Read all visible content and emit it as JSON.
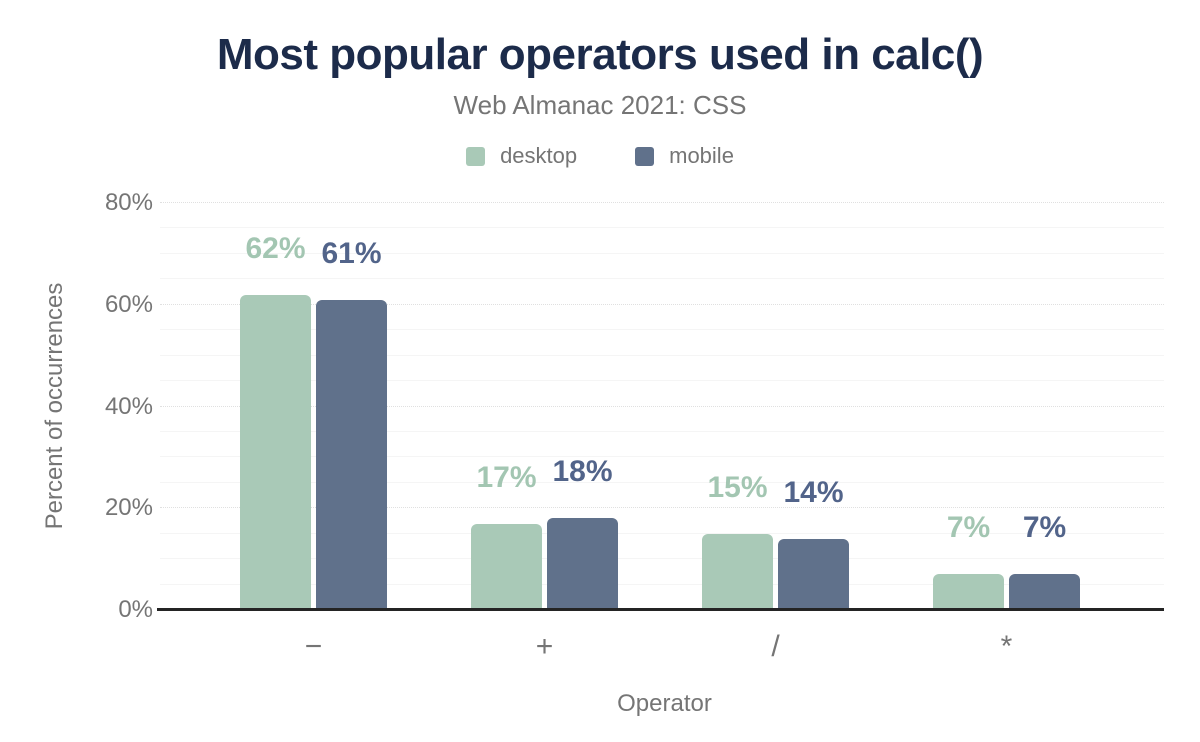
{
  "header": {
    "title": "Most popular operators used in calc()",
    "subtitle": "Web Almanac 2021: CSS"
  },
  "chart_data": {
    "type": "bar",
    "title": "Most popular operators used in calc()",
    "subtitle": "Web Almanac 2021: CSS",
    "categories": [
      "-",
      "+",
      "/",
      "*"
    ],
    "tick_labels": [
      "−",
      "+",
      "/",
      "*"
    ],
    "series": [
      {
        "name": "desktop",
        "color": "#a9c9b7",
        "label_color": "#a3c6b2",
        "values": [
          62,
          17,
          15,
          7
        ],
        "value_labels": [
          "62%",
          "17%",
          "15%",
          "7%"
        ]
      },
      {
        "name": "mobile",
        "color": "#60718b",
        "label_color": "#52648a",
        "values": [
          61,
          18,
          14,
          7
        ],
        "value_labels": [
          "61%",
          "18%",
          "14%",
          "7%"
        ]
      }
    ],
    "xlabel": "Operator",
    "ylabel": "Percent of occurrences",
    "ylim": [
      0,
      80
    ],
    "y_ticks": [
      "0%",
      "20%",
      "40%",
      "60%",
      "80%"
    ],
    "y_major_step": 20,
    "y_minor_step": 5,
    "grid": true,
    "legend_position": "top",
    "colors": {
      "title": "#1c2b4a",
      "axis_text": "#757575",
      "baseline": "#242424",
      "major_grid": "#e0e0e0",
      "minor_grid": "#f5f5f5",
      "background": "#ffffff"
    }
  }
}
